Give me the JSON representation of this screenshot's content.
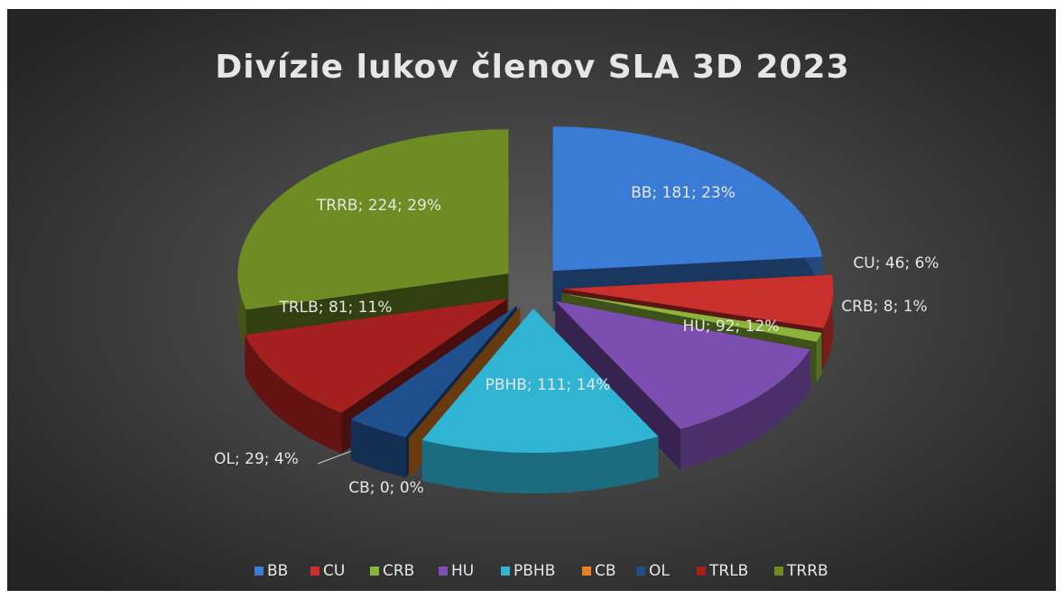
{
  "chart_data": {
    "type": "pie",
    "title": "Divízie lukov členov SLA 3D 2023",
    "categories": [
      "BB",
      "CU",
      "CRB",
      "HU",
      "PBHB",
      "CB",
      "OL",
      "TRLB",
      "TRRB"
    ],
    "values": [
      181,
      46,
      8,
      92,
      111,
      0,
      29,
      81,
      224
    ],
    "value_labels": [
      "BB; 181; 23%",
      "CU; 46; 6%",
      "CRB; 8; 1%",
      "HU; 92; 12%",
      "PBHB; 111; 14%",
      "CB; 0; 0%",
      "OL; 29; 4%",
      "TRLB; 81; 11%",
      "TRRB; 224; 29%"
    ],
    "colors": [
      "#3a7bd5",
      "#c9302c",
      "#8ab53a",
      "#7b4eb0",
      "#2fb4d4",
      "#e88020",
      "#1f4f8c",
      "#a3201e",
      "#6e8c24"
    ],
    "legend": "bottom"
  }
}
